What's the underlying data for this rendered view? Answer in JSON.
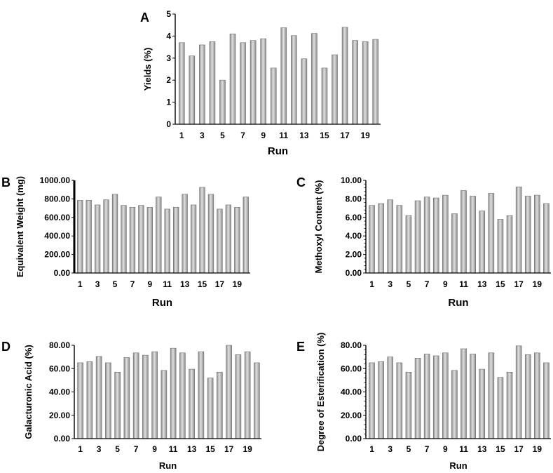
{
  "chart_data": [
    {
      "panel": "A",
      "type": "bar",
      "title": "",
      "xlabel": "Run",
      "ylabel": "Yields (%)",
      "ylim": [
        0,
        5
      ],
      "yticks": [
        "0",
        "1",
        "2",
        "3",
        "4",
        "5"
      ],
      "xtick_labels": [
        "1",
        "3",
        "5",
        "7",
        "9",
        "11",
        "13",
        "15",
        "17",
        "19"
      ],
      "categories": [
        "1",
        "2",
        "3",
        "4",
        "5",
        "6",
        "7",
        "8",
        "9",
        "10",
        "11",
        "12",
        "13",
        "14",
        "15",
        "16",
        "17",
        "18",
        "19",
        "20"
      ],
      "values": [
        3.7,
        3.1,
        3.6,
        3.75,
        2.0,
        4.1,
        3.7,
        3.8,
        3.88,
        2.55,
        4.38,
        4.02,
        2.97,
        4.12,
        2.55,
        3.15,
        4.4,
        3.8,
        3.75,
        3.85
      ]
    },
    {
      "panel": "B",
      "type": "bar",
      "title": "",
      "xlabel": "Run",
      "ylabel": "Equivalent Weight (mg)",
      "ylim": [
        0,
        1000
      ],
      "yticks": [
        "0.00",
        "200.00",
        "400.00",
        "600.00",
        "800.00",
        "1000.00"
      ],
      "xtick_labels": [
        "1",
        "3",
        "5",
        "7",
        "9",
        "11",
        "13",
        "15",
        "17",
        "19"
      ],
      "categories": [
        "1",
        "2",
        "3",
        "4",
        "5",
        "6",
        "7",
        "8",
        "9",
        "10",
        "11",
        "12",
        "13",
        "14",
        "15",
        "16",
        "17",
        "18",
        "19",
        "20"
      ],
      "values": [
        785,
        785,
        735,
        790,
        850,
        730,
        710,
        730,
        710,
        820,
        690,
        710,
        850,
        735,
        925,
        850,
        690,
        735,
        710,
        820
      ]
    },
    {
      "panel": "C",
      "type": "bar",
      "title": "",
      "xlabel": "Run",
      "ylabel": "Methoxyl Content  (%)",
      "ylim": [
        0,
        10
      ],
      "yticks": [
        "0.00",
        "2.00",
        "4.00",
        "6.00",
        "8.00",
        "10.00"
      ],
      "xtick_labels": [
        "1",
        "3",
        "5",
        "7",
        "9",
        "11",
        "13",
        "15",
        "17",
        "19"
      ],
      "categories": [
        "1",
        "2",
        "3",
        "4",
        "5",
        "6",
        "7",
        "8",
        "9",
        "10",
        "11",
        "12",
        "13",
        "14",
        "15",
        "16",
        "17",
        "18",
        "19",
        "20"
      ],
      "values": [
        7.3,
        7.5,
        7.9,
        7.3,
        6.2,
        7.8,
        8.2,
        8.1,
        8.4,
        6.4,
        8.9,
        8.3,
        6.7,
        8.6,
        5.8,
        6.2,
        9.3,
        8.3,
        8.4,
        7.5
      ]
    },
    {
      "panel": "D",
      "type": "bar",
      "title": "",
      "xlabel": "Run",
      "ylabel": "Galacturonic Acid (%)",
      "ylim": [
        0,
        80
      ],
      "yticks": [
        "0.00",
        "20.00",
        "40.00",
        "60.00",
        "80.00"
      ],
      "xtick_labels": [
        "1",
        "3",
        "5",
        "7",
        "9",
        "11",
        "13",
        "15",
        "17",
        "19"
      ],
      "categories": [
        "1",
        "2",
        "3",
        "4",
        "5",
        "6",
        "7",
        "8",
        "9",
        "10",
        "11",
        "12",
        "13",
        "14",
        "15",
        "16",
        "17",
        "18",
        "19",
        "20"
      ],
      "values": [
        65,
        66,
        70.5,
        65,
        57,
        69.5,
        73.5,
        71.5,
        74.5,
        58.5,
        77.5,
        73.5,
        59.5,
        74.5,
        52,
        57,
        80,
        72,
        74.5,
        65
      ]
    },
    {
      "panel": "E",
      "type": "bar",
      "title": "",
      "xlabel": "Run",
      "ylabel": "Degree of Esterification (%)",
      "ylim": [
        0,
        80
      ],
      "yticks": [
        "0.00",
        "20.00",
        "40.00",
        "60.00",
        "80.00"
      ],
      "xtick_labels": [
        "1",
        "3",
        "5",
        "7",
        "9",
        "11",
        "13",
        "15",
        "17",
        "19"
      ],
      "categories": [
        "1",
        "2",
        "3",
        "4",
        "5",
        "6",
        "7",
        "8",
        "9",
        "10",
        "11",
        "12",
        "13",
        "14",
        "15",
        "16",
        "17",
        "18",
        "19",
        "20"
      ],
      "values": [
        65,
        66,
        70,
        65,
        57,
        69,
        72.5,
        71,
        73.5,
        58.5,
        77,
        72.5,
        59.5,
        73.5,
        52.5,
        57,
        79.5,
        72,
        73.5,
        65
      ]
    }
  ],
  "style": {
    "bar_fill_dark": "#8c8c8c",
    "bar_fill_light": "#e0e0e0",
    "axis_color": "#000000"
  }
}
